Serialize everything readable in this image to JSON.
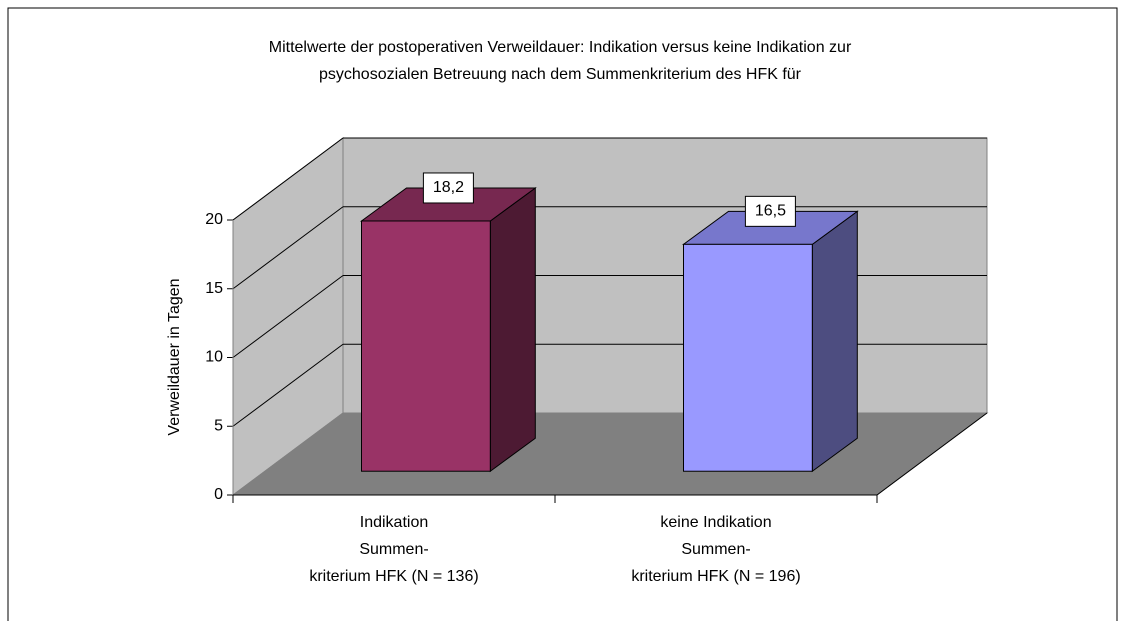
{
  "chart_data": {
    "type": "bar3d",
    "title": [
      "Mittelwerte der postoperativen Verweildauer: Indikation versus keine  Indikation zur",
      "psychosozialen Betreuung nach dem Summenkriterium des HFK für"
    ],
    "y_label": "Verweildauer in Tagen",
    "categories": [
      [
        "Indikation",
        "Summen-",
        "kriterium HFK (N = 136)"
      ],
      [
        "keine Indikation",
        "Summen-",
        "kriterium HFK (N = 196)"
      ]
    ],
    "values": [
      18.2,
      16.5
    ],
    "value_labels": [
      "18,2",
      "16,5"
    ],
    "colors": [
      "#993366",
      "#9999ff"
    ],
    "side_colors": [
      "#4d1a33",
      "#4d4d80"
    ],
    "top_colors": [
      "#772850",
      "#7777cc"
    ],
    "ylim": [
      0,
      20
    ],
    "yticks": [
      0,
      5,
      10,
      15,
      20
    ],
    "grid": true
  }
}
